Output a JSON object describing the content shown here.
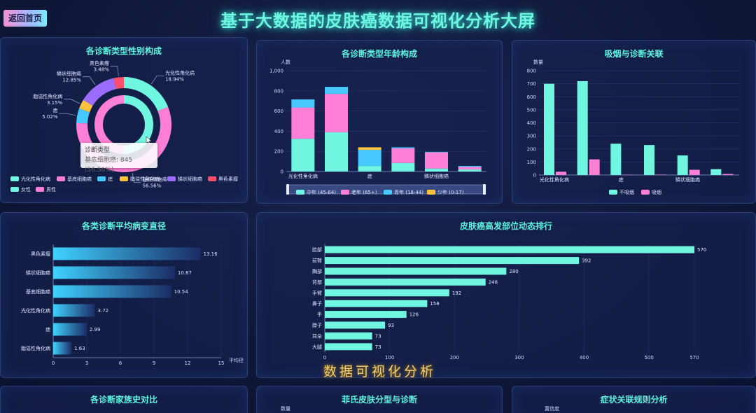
{
  "header": {
    "back_label": "返回首页",
    "title": "基于大数据的皮肤癌数据可视化分析大屏"
  },
  "panels": {
    "gender": "各诊断类型性别构成",
    "age": "各诊断类型年龄构成",
    "smoking": "吸烟与诊断关联",
    "diameter": "各类诊断平均病变直径",
    "region": "皮肤癌高发部位动态排行",
    "family": "各诊断家族史对比",
    "fitzpatrick": "菲氏皮肤分型与诊断",
    "symptoms": "症状关联规则分析"
  },
  "bottom_axis_labels": {
    "fitzpatrick_ylabel": "数量",
    "symptoms_ylabel": "置信度"
  },
  "tooltip": {
    "title": "诊断类型",
    "value": "基底细胞癌: 845 (56.56%)"
  },
  "watermark": "数据可视化分析",
  "chart_data": [
    {
      "id": "gender",
      "type": "pie",
      "outer_ring": [
        {
          "name": "光化性角化病",
          "value": 18.94,
          "label": "18.94%",
          "color": "#6ff5e0"
        },
        {
          "name": "基底细胞癌",
          "value": 56.56,
          "label": "56.56%",
          "color": "#ff7fd6"
        },
        {
          "name": "痣",
          "value": 5.02,
          "label": "5.02%",
          "color": "#47c9ff"
        },
        {
          "name": "脂溢性角化病",
          "value": 3.15,
          "label": "3.15%",
          "color": "#ffc23d"
        },
        {
          "name": "鳞状细胞癌",
          "value": 12.85,
          "label": "12.85%",
          "color": "#9b6cff"
        },
        {
          "name": "黑色素瘤",
          "value": 3.48,
          "label": "3.48%",
          "color": "#ff4f6a"
        }
      ],
      "inner_ring": [
        {
          "name": "女性",
          "value": 50,
          "color": "#6ff5e0"
        },
        {
          "name": "男性",
          "value": 50,
          "color": "#ff7fd6"
        }
      ]
    },
    {
      "id": "age",
      "type": "bar",
      "stacked": true,
      "ylabel": "人数",
      "ylim": [
        0,
        1000
      ],
      "yticks": [
        0,
        200,
        400,
        600,
        800,
        "1,000"
      ],
      "categories": [
        "光化性角化病",
        "基底细胞癌",
        "痣",
        "脂溢性角化病",
        "鳞状细胞癌",
        "黑色素瘤"
      ],
      "shown_category_labels": [
        "光化性角化病",
        "痣",
        "鳞状细胞癌"
      ],
      "series": [
        {
          "name": "中年 (45-64)",
          "color": "#6ff5e0",
          "values": [
            325,
            390,
            55,
            85,
            30,
            20
          ]
        },
        {
          "name": "老年 (65+)",
          "color": "#ff7fd6",
          "values": [
            310,
            380,
            0,
            145,
            160,
            25
          ]
        },
        {
          "name": "青年 (18-44)",
          "color": "#47c9ff",
          "values": [
            80,
            70,
            160,
            10,
            5,
            10
          ]
        },
        {
          "name": "少年 (0-17)",
          "color": "#ffc23d",
          "values": [
            0,
            0,
            25,
            0,
            0,
            0
          ]
        }
      ]
    },
    {
      "id": "smoking",
      "type": "bar",
      "ylabel": "数量",
      "ylim": [
        0,
        800
      ],
      "yticks": [
        0,
        100,
        200,
        300,
        400,
        500,
        600,
        700,
        800
      ],
      "categories": [
        "光化性角化病",
        "基底细胞癌",
        "痣",
        "脂溢性角化病",
        "鳞状细胞癌",
        "黑色素瘤"
      ],
      "shown_category_labels": [
        "光化性角化病",
        "痣",
        "鳞状细胞癌"
      ],
      "series": [
        {
          "name": "不吸烟",
          "color": "#6ff5e0",
          "values": [
            700,
            720,
            240,
            230,
            150,
            45
          ]
        },
        {
          "name": "吸烟",
          "color": "#ff7fd6",
          "values": [
            25,
            120,
            2,
            3,
            40,
            8
          ]
        }
      ]
    },
    {
      "id": "diameter",
      "type": "bar",
      "orientation": "horizontal",
      "xlabel": "平均径",
      "xlim": [
        0,
        15
      ],
      "xticks": [
        0,
        3,
        6,
        9,
        12,
        15
      ],
      "categories": [
        "黑色素瘤",
        "鳞状细胞癌",
        "基底细胞癌",
        "光化性角化病",
        "痣",
        "脂溢性角化病"
      ],
      "values": [
        13.16,
        10.87,
        10.54,
        3.72,
        2.99,
        1.63
      ]
    },
    {
      "id": "region",
      "type": "bar",
      "orientation": "horizontal",
      "xlim": [
        0,
        570
      ],
      "xticks": [
        0,
        100,
        200,
        300,
        400,
        500,
        570
      ],
      "categories": [
        "脸部",
        "前臂",
        "胸部",
        "背部",
        "手臂",
        "鼻子",
        "手",
        "脖子",
        "耳朵",
        "大腿"
      ],
      "values": [
        570,
        392,
        280,
        248,
        192,
        158,
        126,
        93,
        73,
        73
      ]
    }
  ]
}
